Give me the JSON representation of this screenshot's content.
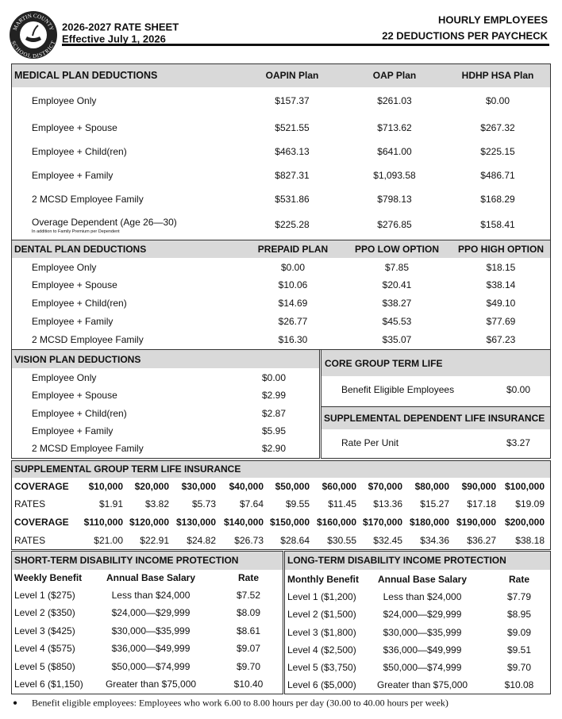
{
  "header": {
    "logo_top": "MARTIN COUNTY",
    "logo_bottom": "SCHOOL DISTRICT",
    "title": "2026-2027 RATE SHEET",
    "effective": "Effective July 1, 2026",
    "group": "HOURLY EMPLOYEES",
    "deductions": "22 DEDUCTIONS PER PAYCHECK"
  },
  "medical": {
    "title": "MEDICAL PLAN DEDUCTIONS",
    "columns": [
      "OAPIN Plan",
      "OAP Plan",
      "HDHP HSA Plan"
    ],
    "rows": [
      [
        "Employee Only",
        "$157.37",
        "$261.03",
        "$0.00"
      ],
      [
        "Employee + Spouse",
        "$521.55",
        "$713.62",
        "$267.32"
      ],
      [
        "Employee + Child(ren)",
        "$463.13",
        "$641.00",
        "$225.15"
      ],
      [
        "Employee + Family",
        "$827.31",
        "$1,093.58",
        "$486.71"
      ],
      [
        "2 MCSD Employee Family",
        "$531.86",
        "$798.13",
        "$168.29"
      ],
      [
        "Overage Dependent (Age 26—30)",
        "$225.28",
        "$276.85",
        "$158.41"
      ]
    ],
    "note": "In addition to Family Premium per Dependent"
  },
  "dental": {
    "title": "DENTAL PLAN DEDUCTIONS",
    "columns": [
      "PREPAID PLAN",
      "PPO LOW OPTION",
      "PPO HIGH OPTION"
    ],
    "rows": [
      [
        "Employee Only",
        "$0.00",
        "$7.85",
        "$18.15"
      ],
      [
        "Employee + Spouse",
        "$10.06",
        "$20.41",
        "$38.14"
      ],
      [
        "Employee + Child(ren)",
        "$14.69",
        "$38.27",
        "$49.10"
      ],
      [
        "Employee + Family",
        "$26.77",
        "$45.53",
        "$77.69"
      ],
      [
        "2 MCSD Employee Family",
        "$16.30",
        "$35.07",
        "$67.23"
      ]
    ]
  },
  "vision": {
    "title": "VISION PLAN DEDUCTIONS",
    "rows": [
      [
        "Employee Only",
        "$0.00"
      ],
      [
        "Employee + Spouse",
        "$2.99"
      ],
      [
        "Employee + Child(ren)",
        "$2.87"
      ],
      [
        "Employee + Family",
        "$5.95"
      ],
      [
        "2 MCSD Employee Family",
        "$2.90"
      ]
    ]
  },
  "core_life": {
    "title": "CORE GROUP TERM LIFE",
    "rows": [
      [
        "Benefit Eligible Employees",
        "$0.00"
      ]
    ]
  },
  "supp_dependent": {
    "title": "SUPPLEMENTAL DEPENDENT LIFE INSURANCE",
    "rows": [
      [
        "Rate Per Unit",
        "$3.27"
      ]
    ]
  },
  "supp_group": {
    "title": "SUPPLEMENTAL GROUP TERM LIFE INSURANCE",
    "rows": [
      [
        "COVERAGE",
        "$10,000",
        "$20,000",
        "$30,000",
        "$40,000",
        "$50,000",
        "$60,000",
        "$70,000",
        "$80,000",
        "$90,000",
        "$100,000"
      ],
      [
        "RATES",
        "$1.91",
        "$3.82",
        "$5.73",
        "$7.64",
        "$9.55",
        "$11.45",
        "$13.36",
        "$15.27",
        "$17.18",
        "$19.09"
      ],
      [
        "COVERAGE",
        "$110,000",
        "$120,000",
        "$130,000",
        "$140,000",
        "$150,000",
        "$160,000",
        "$170,000",
        "$180,000",
        "$190,000",
        "$200,000"
      ],
      [
        "RATES",
        "$21.00",
        "$22.91",
        "$24.82",
        "$26.73",
        "$28.64",
        "$30.55",
        "$32.45",
        "$34.36",
        "$36.27",
        "$38.18"
      ]
    ]
  },
  "short_term": {
    "title": "SHORT-TERM DISABILITY INCOME PROTECTION",
    "columns": [
      "Weekly Benefit",
      "Annual Base Salary",
      "Rate"
    ],
    "rows": [
      [
        "Level 1 ($275)",
        "Less than $24,000",
        "$7.52"
      ],
      [
        "Level 2 ($350)",
        "$24,000—$29,999",
        "$8.09"
      ],
      [
        "Level 3 ($425)",
        "$30,000—$35,999",
        "$8.61"
      ],
      [
        "Level 4 ($575)",
        "$36,000—$49,999",
        "$9.07"
      ],
      [
        "Level 5 ($850)",
        "$50,000—$74,999",
        "$9.70"
      ],
      [
        "Level 6 ($1,150)",
        "Greater than $75,000",
        "$10.40"
      ]
    ]
  },
  "long_term": {
    "title": "LONG-TERM DISABILITY INCOME PROTECTION",
    "columns": [
      "Monthly Benefit",
      "Annual Base Salary",
      "Rate"
    ],
    "rows": [
      [
        "Level 1 ($1,200)",
        "Less than $24,000",
        "$7.79"
      ],
      [
        "Level 2 ($1,500)",
        "$24,000—$29,999",
        "$8.95"
      ],
      [
        "Level 3 ($1,800)",
        "$30,000—$35,999",
        "$9.09"
      ],
      [
        "Level 4 ($2,500)",
        "$36,000—$49,999",
        "$9.51"
      ],
      [
        "Level 5 ($3,750)",
        "$50,000—$74,999",
        "$9.70"
      ],
      [
        "Level 6 ($5,000)",
        "Greater than $75,000",
        "$10.08"
      ]
    ]
  },
  "footnote": "Benefit eligible employees: Employees who work 6.00 to 8.00 hours per day (30.00 to 40.00 hours per week)"
}
